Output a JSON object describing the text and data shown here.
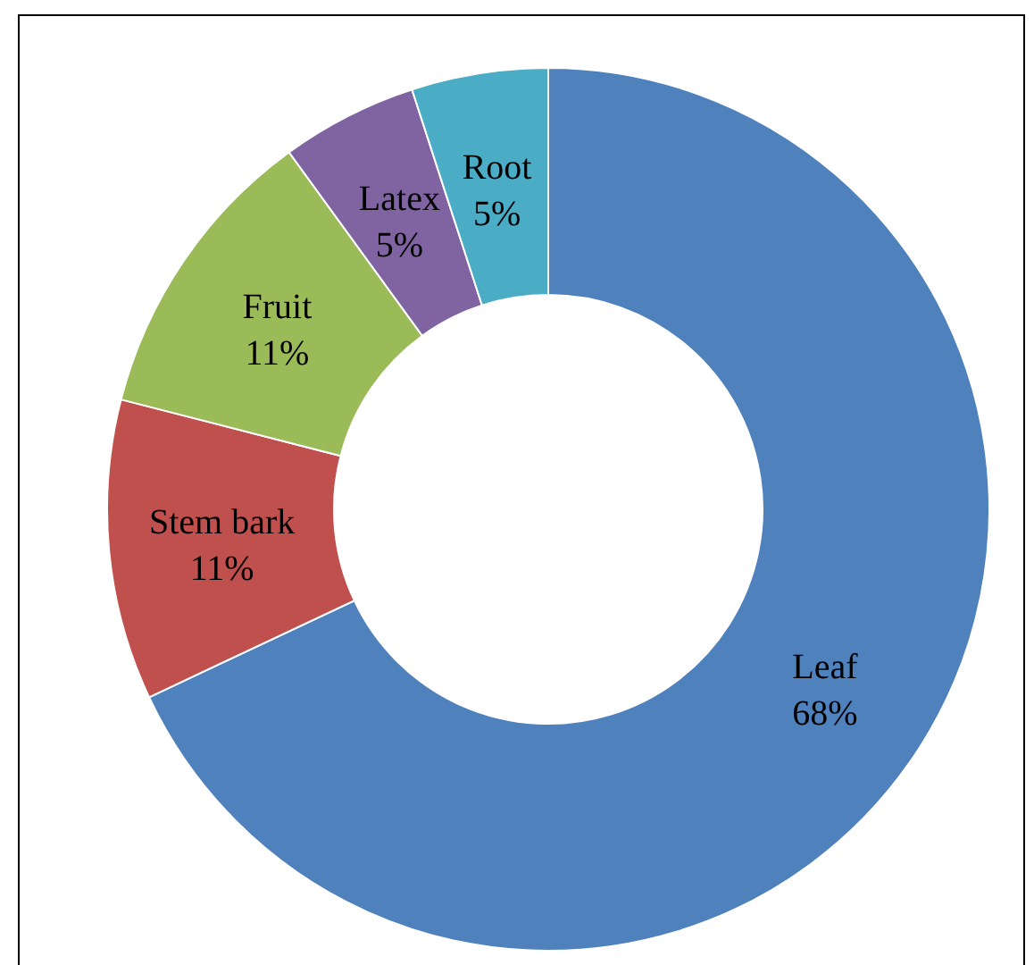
{
  "chart_data": {
    "type": "donut",
    "categories": [
      "Leaf",
      "Stem bark",
      "Fruit",
      "Latex",
      "Root"
    ],
    "values": [
      68,
      11,
      11,
      5,
      5
    ],
    "colors": [
      "#4f81bd",
      "#c0504d",
      "#9bbb59",
      "#8064a2",
      "#4bacc6"
    ],
    "value_labels": [
      "68%",
      "11%",
      "11%",
      "5%",
      "5%"
    ],
    "legend": false
  }
}
